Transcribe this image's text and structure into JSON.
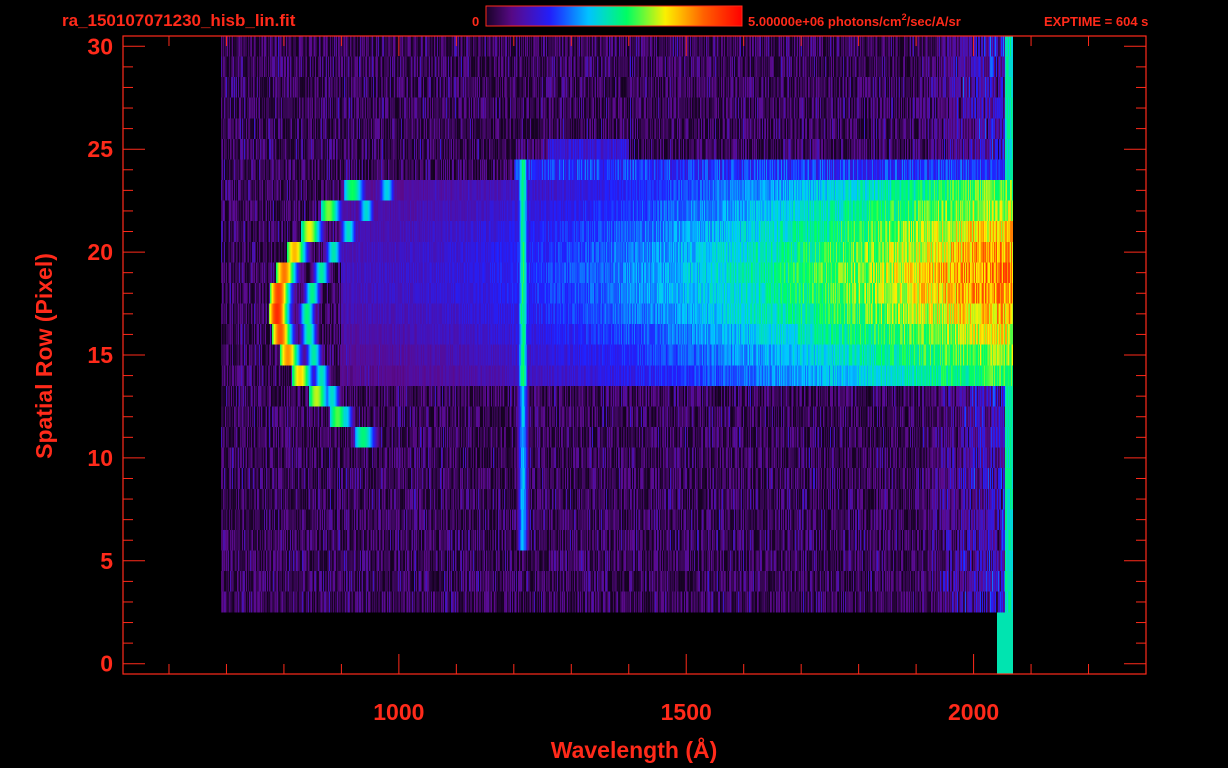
{
  "chart_data": {
    "type": "heatmap",
    "title": "ra_150107071230_hisb_lin.fit",
    "xlabel": "Wavelength (Å)",
    "ylabel": "Spatial Row (Pixel)",
    "xlim": [
      520,
      2300
    ],
    "ylim": [
      -0.5,
      30.5
    ],
    "x_ticks": [
      1000,
      1500,
      2000
    ],
    "y_ticks": [
      0,
      5,
      10,
      15,
      20,
      25,
      30
    ],
    "colorbar": {
      "min_label": "0",
      "max_label": "5.00000e+06 photons/cm",
      "max_label_sup": "2",
      "max_label_suffix": "/sec/A/sr",
      "vmax": 5000000
    },
    "exptime_label": "EXPTIME = 604 s",
    "colormap": [
      "#000000",
      "#5b0a8c",
      "#2020ff",
      "#00c8ff",
      "#00ff60",
      "#fff000",
      "#ff6000",
      "#ff0000"
    ],
    "axis_color": "#ff2a1a",
    "features": [
      {
        "name": "crescent",
        "x_center": 820,
        "y_range": [
          11,
          23
        ],
        "peak_intensity": 1.0
      },
      {
        "name": "emission-line",
        "x": 1216,
        "y_range": [
          6,
          24
        ],
        "peak_intensity": 0.55
      },
      {
        "name": "continuum-band",
        "x_range": [
          900,
          2065
        ],
        "y_range": [
          14,
          23
        ],
        "peak_intensity": 0.9
      },
      {
        "name": "sharp-edge",
        "x": 2065,
        "y_range": [
          2,
          30
        ]
      }
    ]
  }
}
